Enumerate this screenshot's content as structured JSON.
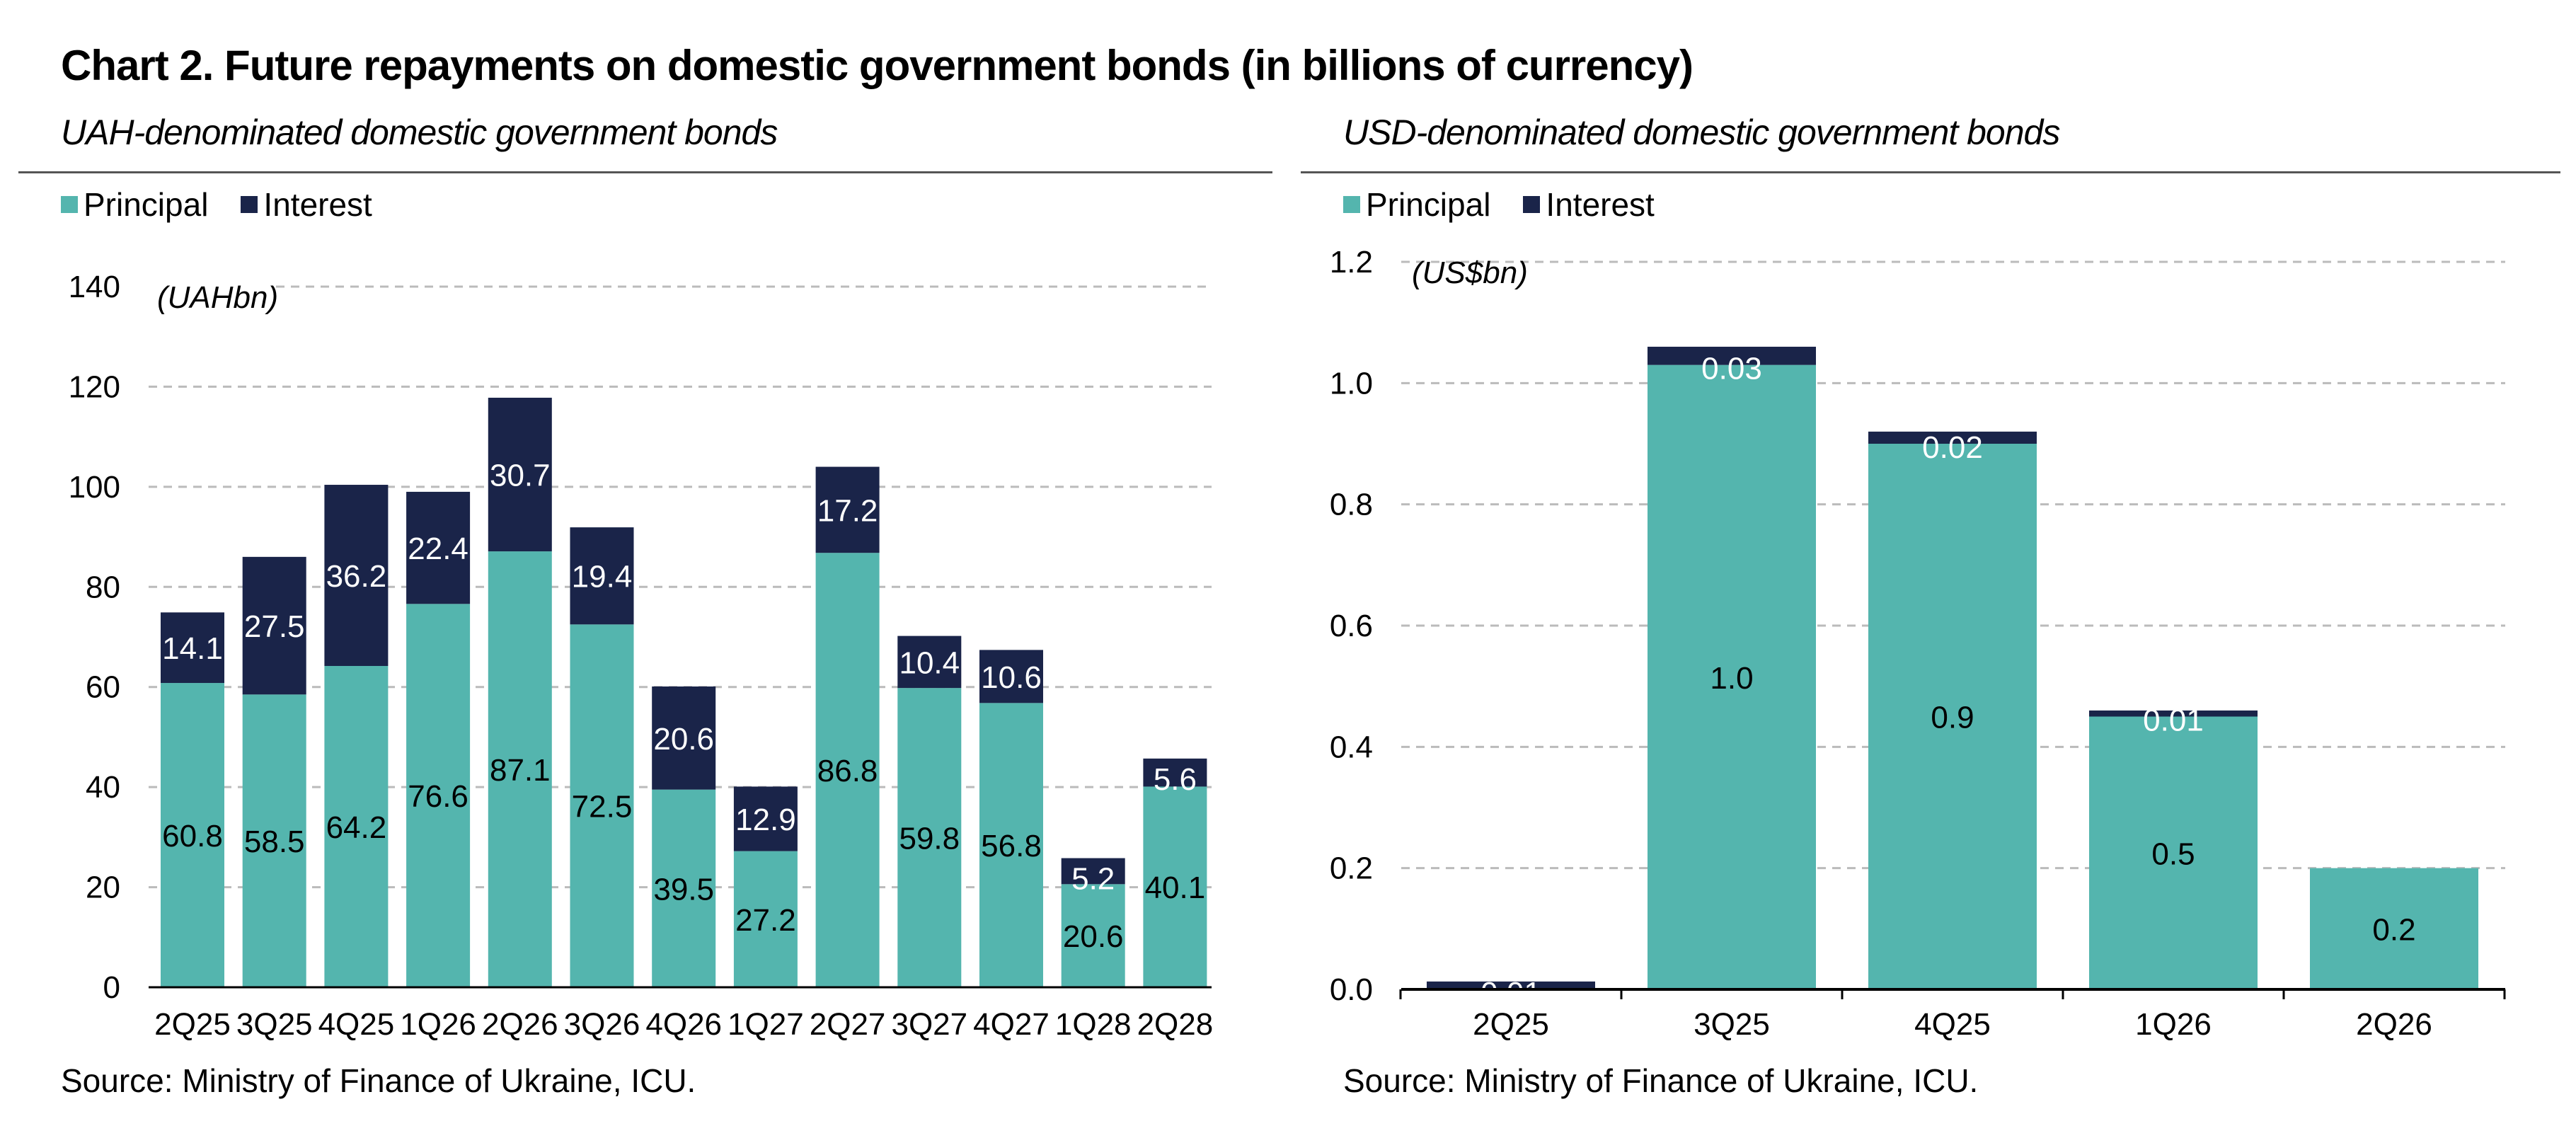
{
  "title": "Chart 2. Future repayments on domestic government bonds (in billions of currency)",
  "source": "Source: Ministry of Finance of Ukraine, ICU.",
  "colors": {
    "principal": "#54b5ae",
    "interest": "#1a2449",
    "grid": "#bbbbbb"
  },
  "chart_data": [
    {
      "type": "bar",
      "stacked": true,
      "title": "UAH-denominated domestic government bonds",
      "unit_label": "(UAHbn)",
      "categories": [
        "2Q25",
        "3Q25",
        "4Q25",
        "1Q26",
        "2Q26",
        "3Q26",
        "4Q26",
        "1Q27",
        "2Q27",
        "3Q27",
        "4Q27",
        "1Q28",
        "2Q28"
      ],
      "series": [
        {
          "name": "Principal",
          "values": [
            60.8,
            58.5,
            64.2,
            76.6,
            87.1,
            72.5,
            39.5,
            27.2,
            86.8,
            59.8,
            56.8,
            20.6,
            40.1
          ]
        },
        {
          "name": "Interest",
          "values": [
            14.1,
            27.5,
            36.2,
            22.4,
            30.7,
            19.4,
            20.6,
            12.9,
            17.2,
            10.4,
            10.6,
            5.2,
            5.6
          ]
        }
      ],
      "ylim": [
        0,
        140
      ],
      "yticks": [
        "0",
        "20",
        "40",
        "60",
        "80",
        "100",
        "120",
        "140"
      ],
      "grid": true,
      "legend": "top-left"
    },
    {
      "type": "bar",
      "stacked": true,
      "title": "USD-denominated domestic government bonds",
      "unit_label": "(US$bn)",
      "categories": [
        "2Q25",
        "3Q25",
        "4Q25",
        "1Q26",
        "2Q26"
      ],
      "series": [
        {
          "name": "Principal",
          "values": [
            0.0,
            1.03,
            0.9,
            0.45,
            0.2
          ],
          "labels": [
            "",
            "1.0",
            "0.9",
            "0.5",
            "0.2"
          ]
        },
        {
          "name": "Interest",
          "values": [
            0.013,
            0.03,
            0.02,
            0.01,
            0.0
          ],
          "labels": [
            "0.01",
            "0.03",
            "0.02",
            "0.01",
            ""
          ]
        }
      ],
      "ylim": [
        0,
        1.2
      ],
      "yticks": [
        "0.0",
        "0.2",
        "0.4",
        "0.6",
        "0.8",
        "1.0",
        "1.2"
      ],
      "grid": true,
      "legend": "top-left"
    }
  ]
}
